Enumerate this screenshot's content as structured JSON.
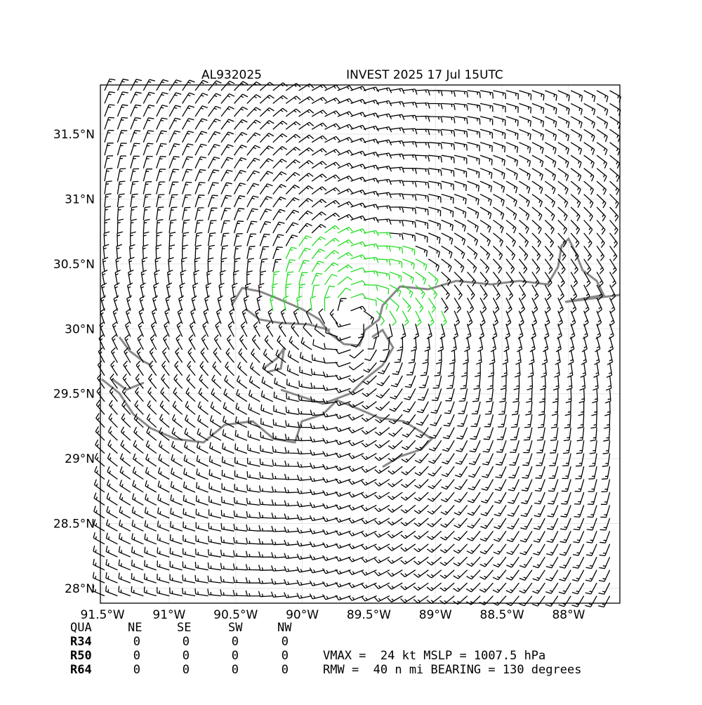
{
  "chart_data": {
    "type": "barbs",
    "title_left": "AL932025",
    "title": "INVEST 2025 17 Jul 15UTC",
    "xlim": [
      -91.516,
      -87.615
    ],
    "ylim": [
      27.886,
      31.879
    ],
    "xticks": [
      {
        "value": -91.5,
        "label": "91.5°W"
      },
      {
        "value": -91,
        "label": "91°W"
      },
      {
        "value": -90.5,
        "label": "90.5°W"
      },
      {
        "value": -90,
        "label": "90°W"
      },
      {
        "value": -89.5,
        "label": "89.5°W"
      },
      {
        "value": -89,
        "label": "89°W"
      },
      {
        "value": -88.5,
        "label": "88.5°W"
      },
      {
        "value": -88,
        "label": "88°W"
      }
    ],
    "yticks": [
      {
        "value": 28,
        "label": "28°N"
      },
      {
        "value": 28.5,
        "label": "28.5°N"
      },
      {
        "value": 29,
        "label": "29°N"
      },
      {
        "value": 29.5,
        "label": "29.5°N"
      },
      {
        "value": 30,
        "label": "30°N"
      },
      {
        "value": 30.5,
        "label": "30.5°N"
      },
      {
        "value": 31,
        "label": "31°N"
      },
      {
        "value": 31.5,
        "label": "31.5°N"
      }
    ],
    "grid": true
  },
  "table": {
    "header": [
      "QUA",
      "NE",
      "SE",
      "SW",
      "NW"
    ],
    "rows": [
      [
        "R34",
        "0",
        "0",
        "0",
        "0"
      ],
      [
        "R50",
        "0",
        "0",
        "0",
        "0"
      ],
      [
        "R64",
        "0",
        "0",
        "0",
        "0"
      ]
    ]
  },
  "info": [
    "VMAX =  24 kt MSLP = 1007.5 hPa",
    "RMW =  40 n mi BEARING = 130 degrees"
  ]
}
